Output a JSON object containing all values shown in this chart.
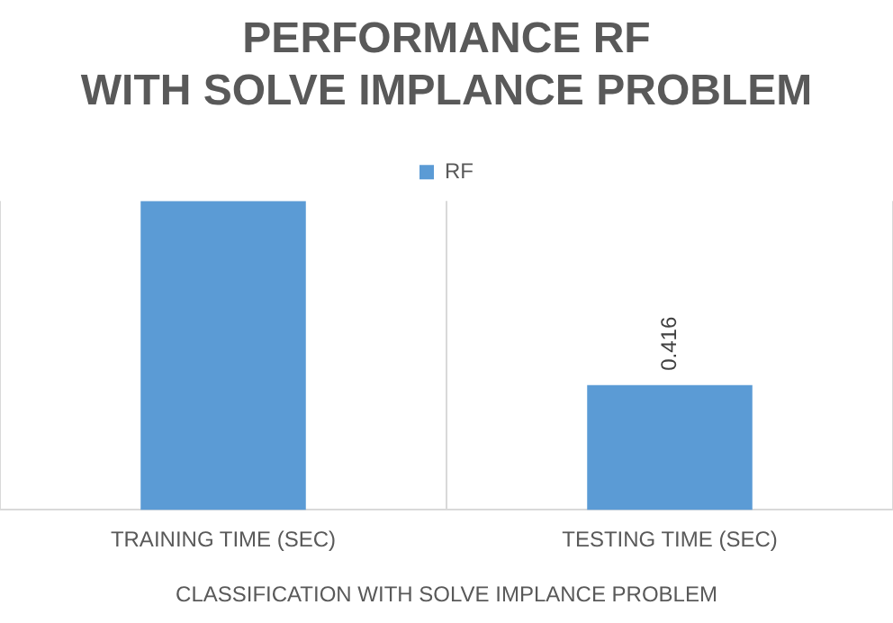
{
  "chart_data": {
    "type": "bar",
    "title": "PERFORMANCE RF\nWITH SOLVE IMPLANCE PROBLEM",
    "xlabel": "CLASSIFICATION WITH SOLVE IMPLANCE PROBLEM",
    "categories": [
      "TRAINING TIME (SEC)",
      "TESTING TIME (SEC)"
    ],
    "series": [
      {
        "name": "RF",
        "color": "#5b9bd5",
        "values": [
          1.03,
          0.416
        ],
        "value_labels": [
          null,
          "0.416"
        ]
      }
    ],
    "grid": "x",
    "legend": "top",
    "tick_labels": "x"
  }
}
